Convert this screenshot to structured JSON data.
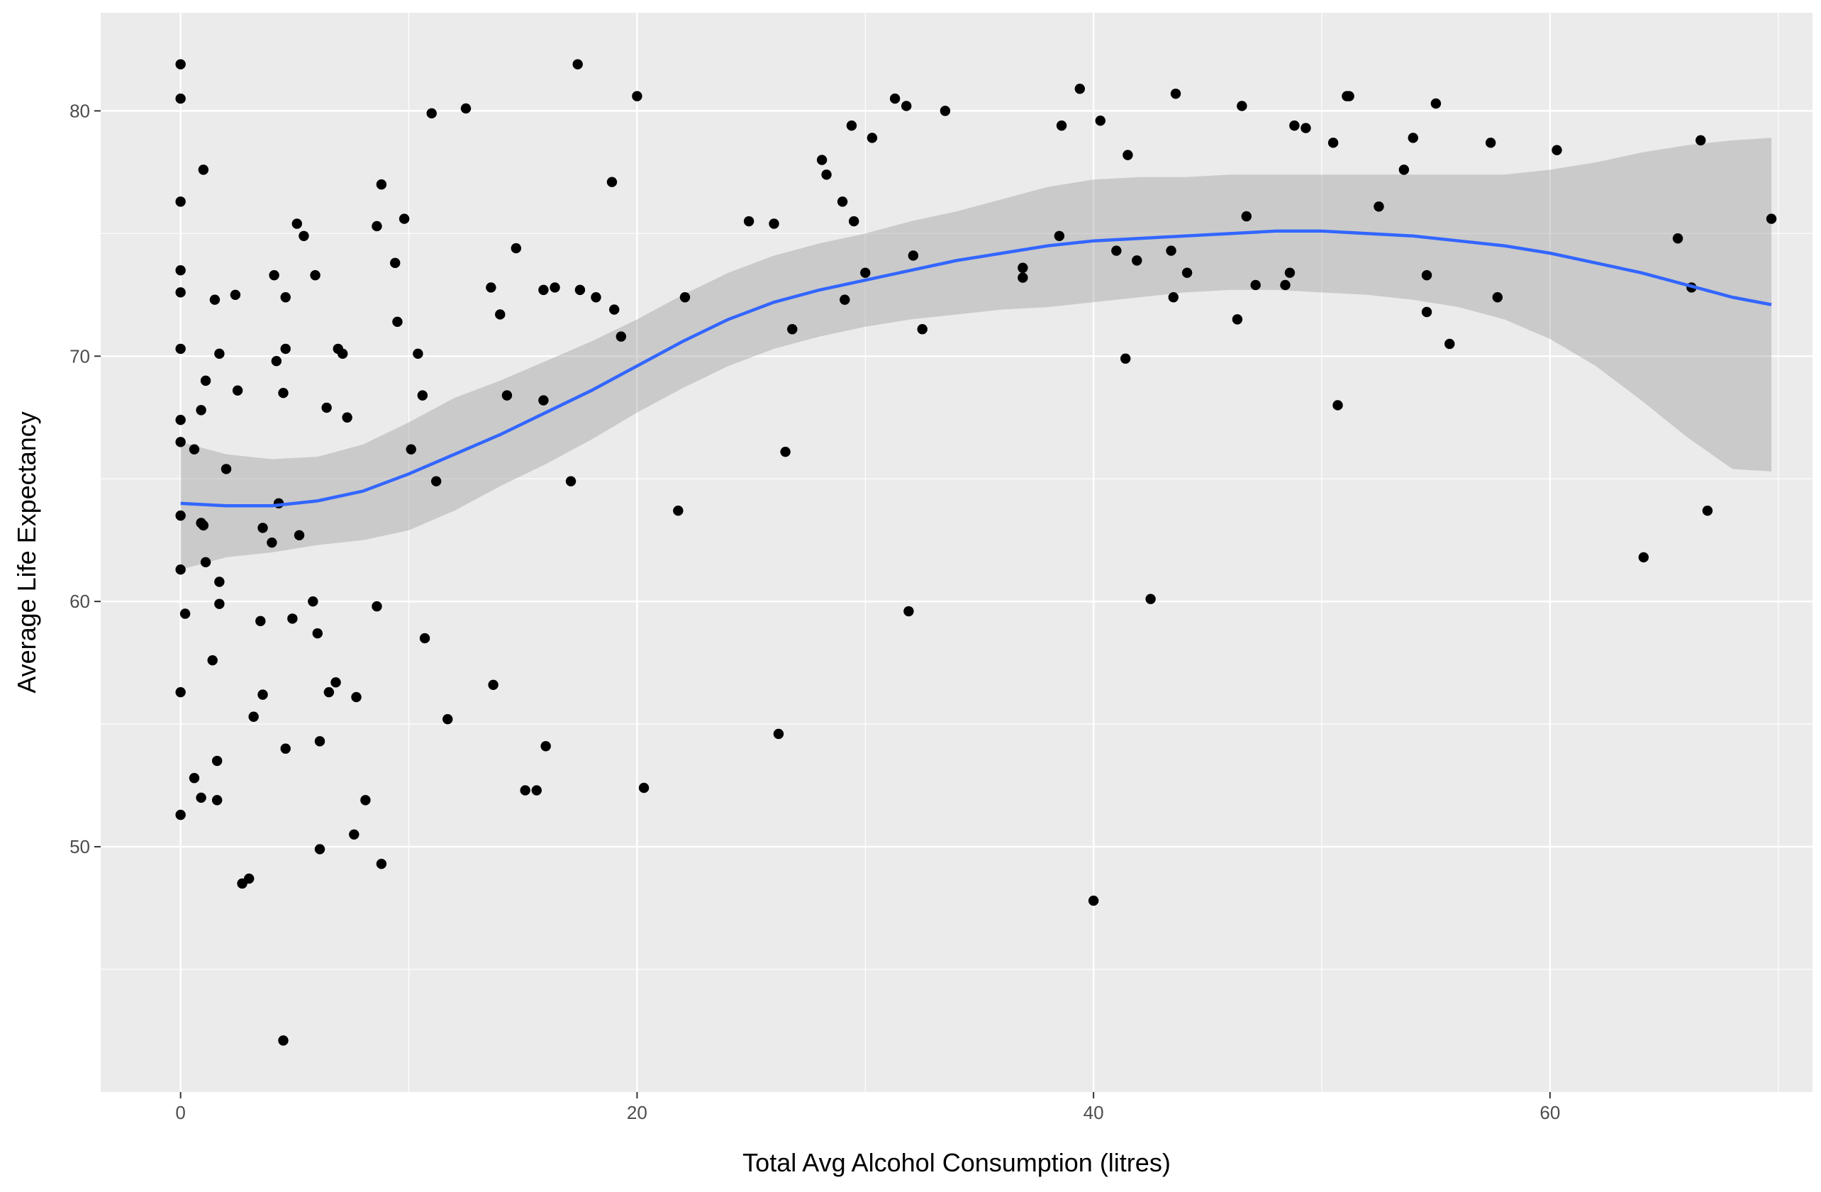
{
  "chart_data": {
    "type": "scatter",
    "xlabel": "Total Avg Alcohol Consumption (litres)",
    "ylabel": "Average Life Expectancy",
    "xlim": [
      -3.5,
      71.5
    ],
    "ylim": [
      40,
      84
    ],
    "x_ticks": [
      0,
      20,
      40,
      60
    ],
    "y_ticks": [
      50,
      60,
      70,
      80
    ],
    "x_tick_labels": [
      "0",
      "20",
      "40",
      "60"
    ],
    "y_tick_labels": [
      "50",
      "60",
      "70",
      "80"
    ],
    "grid": true,
    "background": "#ebebeb",
    "point_color": "#000000",
    "smooth_color": "#3366ff",
    "band_color": "#999999",
    "points": [
      [
        0.0,
        81.9
      ],
      [
        0.0,
        80.5
      ],
      [
        0.0,
        76.3
      ],
      [
        0.0,
        73.5
      ],
      [
        0.0,
        72.6
      ],
      [
        0.0,
        70.3
      ],
      [
        0.0,
        67.4
      ],
      [
        0.0,
        66.5
      ],
      [
        0.0,
        63.5
      ],
      [
        0.0,
        61.3
      ],
      [
        0.2,
        59.5
      ],
      [
        0.0,
        56.3
      ],
      [
        0.0,
        51.3
      ],
      [
        0.6,
        66.2
      ],
      [
        1.0,
        77.6
      ],
      [
        1.1,
        69.0
      ],
      [
        0.9,
        67.8
      ],
      [
        0.9,
        63.2
      ],
      [
        1.0,
        63.1
      ],
      [
        1.1,
        61.6
      ],
      [
        1.4,
        57.6
      ],
      [
        1.5,
        72.3
      ],
      [
        1.7,
        70.1
      ],
      [
        1.7,
        60.8
      ],
      [
        1.7,
        59.9
      ],
      [
        1.6,
        53.5
      ],
      [
        0.6,
        52.8
      ],
      [
        0.9,
        52.0
      ],
      [
        1.6,
        51.9
      ],
      [
        2.0,
        65.4
      ],
      [
        2.4,
        72.5
      ],
      [
        2.5,
        68.6
      ],
      [
        2.7,
        48.5
      ],
      [
        3.0,
        48.7
      ],
      [
        3.2,
        55.3
      ],
      [
        3.5,
        59.2
      ],
      [
        3.6,
        63.0
      ],
      [
        3.6,
        56.2
      ],
      [
        4.0,
        62.4
      ],
      [
        4.1,
        73.3
      ],
      [
        4.2,
        69.8
      ],
      [
        4.3,
        64.0
      ],
      [
        4.5,
        68.5
      ],
      [
        4.6,
        72.4
      ],
      [
        4.6,
        70.3
      ],
      [
        4.6,
        54.0
      ],
      [
        4.5,
        42.1
      ],
      [
        4.9,
        59.3
      ],
      [
        5.1,
        75.4
      ],
      [
        5.2,
        62.7
      ],
      [
        5.4,
        74.9
      ],
      [
        5.8,
        60.0
      ],
      [
        5.9,
        73.3
      ],
      [
        6.0,
        58.7
      ],
      [
        6.1,
        54.3
      ],
      [
        6.1,
        49.9
      ],
      [
        6.4,
        67.9
      ],
      [
        6.5,
        56.3
      ],
      [
        6.8,
        56.7
      ],
      [
        6.9,
        70.3
      ],
      [
        7.1,
        70.1
      ],
      [
        7.3,
        67.5
      ],
      [
        7.6,
        50.5
      ],
      [
        7.7,
        56.1
      ],
      [
        8.1,
        51.9
      ],
      [
        8.6,
        59.8
      ],
      [
        8.6,
        75.3
      ],
      [
        8.8,
        77.0
      ],
      [
        8.8,
        49.3
      ],
      [
        9.4,
        73.8
      ],
      [
        9.5,
        71.4
      ],
      [
        9.8,
        75.6
      ],
      [
        10.1,
        66.2
      ],
      [
        10.4,
        70.1
      ],
      [
        10.6,
        68.4
      ],
      [
        10.7,
        58.5
      ],
      [
        11.0,
        79.9
      ],
      [
        11.2,
        64.9
      ],
      [
        11.7,
        55.2
      ],
      [
        12.5,
        80.1
      ],
      [
        13.6,
        72.8
      ],
      [
        13.7,
        56.6
      ],
      [
        14.0,
        71.7
      ],
      [
        14.3,
        68.4
      ],
      [
        14.7,
        74.4
      ],
      [
        15.1,
        52.3
      ],
      [
        15.6,
        52.3
      ],
      [
        15.9,
        68.2
      ],
      [
        15.9,
        72.7
      ],
      [
        16.0,
        54.1
      ],
      [
        16.4,
        72.8
      ],
      [
        17.1,
        64.9
      ],
      [
        17.4,
        81.9
      ],
      [
        17.5,
        72.7
      ],
      [
        18.2,
        72.4
      ],
      [
        18.9,
        77.1
      ],
      [
        19.0,
        71.9
      ],
      [
        19.3,
        70.8
      ],
      [
        20.0,
        80.6
      ],
      [
        20.3,
        52.4
      ],
      [
        21.8,
        63.7
      ],
      [
        22.1,
        72.4
      ],
      [
        24.9,
        75.5
      ],
      [
        26.0,
        75.4
      ],
      [
        26.2,
        54.6
      ],
      [
        26.5,
        66.1
      ],
      [
        26.8,
        71.1
      ],
      [
        28.1,
        78.0
      ],
      [
        28.3,
        77.4
      ],
      [
        29.0,
        76.3
      ],
      [
        29.1,
        72.3
      ],
      [
        29.4,
        79.4
      ],
      [
        29.5,
        75.5
      ],
      [
        30.0,
        73.4
      ],
      [
        30.3,
        78.9
      ],
      [
        31.3,
        80.5
      ],
      [
        31.8,
        80.2
      ],
      [
        31.9,
        59.6
      ],
      [
        32.1,
        74.1
      ],
      [
        32.5,
        71.1
      ],
      [
        33.5,
        80.0
      ],
      [
        36.9,
        73.6
      ],
      [
        36.9,
        73.2
      ],
      [
        38.5,
        74.9
      ],
      [
        38.6,
        79.4
      ],
      [
        39.4,
        80.9
      ],
      [
        40.0,
        47.8
      ],
      [
        40.3,
        79.6
      ],
      [
        41.0,
        74.3
      ],
      [
        41.4,
        69.9
      ],
      [
        41.5,
        78.2
      ],
      [
        41.9,
        73.9
      ],
      [
        42.5,
        60.1
      ],
      [
        43.4,
        74.3
      ],
      [
        43.5,
        72.4
      ],
      [
        43.6,
        80.7
      ],
      [
        44.1,
        73.4
      ],
      [
        46.3,
        71.5
      ],
      [
        46.5,
        80.2
      ],
      [
        46.7,
        75.7
      ],
      [
        47.1,
        72.9
      ],
      [
        48.4,
        72.9
      ],
      [
        48.6,
        73.4
      ],
      [
        48.8,
        79.4
      ],
      [
        49.3,
        79.3
      ],
      [
        50.5,
        78.7
      ],
      [
        50.7,
        68.0
      ],
      [
        51.1,
        80.6
      ],
      [
        51.2,
        80.6
      ],
      [
        52.5,
        76.1
      ],
      [
        53.6,
        77.6
      ],
      [
        54.0,
        78.9
      ],
      [
        54.6,
        73.3
      ],
      [
        54.6,
        71.8
      ],
      [
        55.0,
        80.3
      ],
      [
        55.6,
        70.5
      ],
      [
        57.4,
        78.7
      ],
      [
        57.7,
        72.4
      ],
      [
        60.3,
        78.4
      ],
      [
        64.1,
        61.8
      ],
      [
        65.6,
        74.8
      ],
      [
        66.2,
        72.8
      ],
      [
        66.6,
        78.8
      ],
      [
        66.9,
        63.7
      ],
      [
        69.7,
        75.6
      ]
    ],
    "smooth": {
      "x": [
        0,
        2,
        4,
        6,
        8,
        10,
        12,
        14,
        16,
        18,
        20,
        22,
        24,
        26,
        28,
        30,
        32,
        34,
        36,
        38,
        40,
        42,
        44,
        46,
        48,
        50,
        52,
        54,
        56,
        58,
        60,
        62,
        64,
        66,
        68,
        69.7
      ],
      "y": [
        64.0,
        63.9,
        63.9,
        64.1,
        64.5,
        65.2,
        66.0,
        66.8,
        67.7,
        68.6,
        69.6,
        70.6,
        71.5,
        72.2,
        72.7,
        73.1,
        73.5,
        73.9,
        74.2,
        74.5,
        74.7,
        74.8,
        74.9,
        75.0,
        75.1,
        75.1,
        75.0,
        74.9,
        74.7,
        74.5,
        74.2,
        73.8,
        73.4,
        72.9,
        72.4,
        72.1
      ],
      "lower": [
        61.3,
        61.8,
        62.0,
        62.3,
        62.5,
        62.9,
        63.7,
        64.7,
        65.6,
        66.6,
        67.7,
        68.7,
        69.6,
        70.3,
        70.8,
        71.2,
        71.5,
        71.7,
        71.9,
        72.0,
        72.2,
        72.4,
        72.6,
        72.7,
        72.7,
        72.6,
        72.5,
        72.3,
        72.0,
        71.5,
        70.7,
        69.6,
        68.2,
        66.7,
        65.4,
        65.3
      ],
      "upper": [
        66.5,
        66.0,
        65.8,
        65.9,
        66.4,
        67.3,
        68.3,
        69.0,
        69.8,
        70.6,
        71.5,
        72.5,
        73.4,
        74.1,
        74.6,
        75.0,
        75.5,
        75.9,
        76.4,
        76.9,
        77.2,
        77.3,
        77.3,
        77.4,
        77.4,
        77.4,
        77.4,
        77.4,
        77.4,
        77.4,
        77.6,
        77.9,
        78.3,
        78.6,
        78.8,
        78.9
      ]
    }
  }
}
